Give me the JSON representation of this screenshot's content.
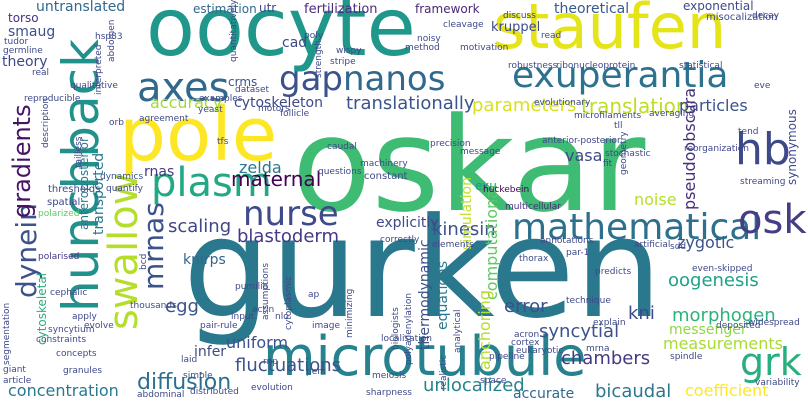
{
  "words": [
    {
      "text": "oskar",
      "color": "#3fbc73",
      "vertical": false
    },
    {
      "text": "gurken",
      "color": "#2a788e",
      "vertical": false
    },
    {
      "text": "oocyte",
      "color": "#1f988b",
      "vertical": false
    },
    {
      "text": "staufen",
      "color": "#e5e419",
      "vertical": false
    },
    {
      "text": "pole",
      "color": "#fde725",
      "vertical": false
    },
    {
      "text": "hunchback",
      "color": "#21918c",
      "vertical": true
    },
    {
      "text": "microtubule",
      "color": "#26828e",
      "vertical": false
    },
    {
      "text": "exuperantia",
      "color": "#2c728e",
      "vertical": false
    },
    {
      "text": "mathematical",
      "color": "#2d708e",
      "vertical": false
    },
    {
      "text": "nanos",
      "color": "#31688e",
      "vertical": false
    },
    {
      "text": "plasm",
      "color": "#22a884",
      "vertical": false
    },
    {
      "text": "swallow",
      "color": "#b5de2b",
      "vertical": true
    },
    {
      "text": "axes",
      "color": "#30688e",
      "vertical": false
    },
    {
      "text": "gap",
      "color": "#3b528b",
      "vertical": false
    },
    {
      "text": "nurse",
      "color": "#3e4a89",
      "vertical": false
    },
    {
      "text": "hb",
      "color": "#3e4989",
      "vertical": false
    },
    {
      "text": "osk",
      "color": "#433e85",
      "vertical": false
    },
    {
      "text": "grk",
      "color": "#29af7f",
      "vertical": false
    },
    {
      "text": "dynein",
      "color": "#3b528b",
      "vertical": true
    },
    {
      "text": "mrnas",
      "color": "#3b528b",
      "vertical": true
    },
    {
      "text": "diffusion",
      "color": "#2d708e",
      "vertical": false
    },
    {
      "text": "gradients",
      "color": "#471365",
      "vertical": true
    },
    {
      "text": "translationally",
      "color": "#39558c",
      "vertical": false
    },
    {
      "text": "untranslated",
      "color": "#31688e",
      "vertical": false
    },
    {
      "text": "theoretical",
      "color": "#375a8c",
      "vertical": false
    },
    {
      "text": "morphogen",
      "color": "#2db27d",
      "vertical": false
    },
    {
      "text": "oogenesis",
      "color": "#1fa188",
      "vertical": false
    },
    {
      "text": "translation",
      "color": "#bddf26",
      "vertical": false
    },
    {
      "text": "accuracy",
      "color": "#a2da37",
      "vertical": false
    },
    {
      "text": "cytoskeleton",
      "color": "#3e4989",
      "vertical": false
    },
    {
      "text": "blastoderm",
      "color": "#443983",
      "vertical": false
    },
    {
      "text": "maternal",
      "color": "#440154",
      "vertical": false
    },
    {
      "text": "kinesin",
      "color": "#3b528b",
      "vertical": false
    },
    {
      "text": "scaling",
      "color": "#404688",
      "vertical": false
    },
    {
      "text": "parameters",
      "color": "#d8e219",
      "vertical": false
    },
    {
      "text": "particles",
      "color": "#3b528b",
      "vertical": false
    },
    {
      "text": "pseudoobscura",
      "color": "#472d7b",
      "vertical": true
    },
    {
      "text": "uniform",
      "color": "#3b528b",
      "vertical": false
    },
    {
      "text": "fluctuations",
      "color": "#3b528b",
      "vertical": false
    },
    {
      "text": "unlocalized",
      "color": "#25848e",
      "vertical": false
    },
    {
      "text": "concentration",
      "color": "#2a788e",
      "vertical": false
    },
    {
      "text": "syncytial",
      "color": "#3b528b",
      "vertical": false
    },
    {
      "text": "chambers",
      "color": "#443983",
      "vertical": false
    },
    {
      "text": "measurements",
      "color": "#a8db34",
      "vertical": false
    },
    {
      "text": "bicaudal",
      "color": "#2a788e",
      "vertical": false
    },
    {
      "text": "coefficient",
      "color": "#fde725",
      "vertical": false
    },
    {
      "text": "accurate",
      "color": "#30688e",
      "vertical": false
    },
    {
      "text": "messenger",
      "color": "#90d743",
      "vertical": false
    },
    {
      "text": "kni",
      "color": "#3e4989",
      "vertical": false
    },
    {
      "text": "noise",
      "color": "#b5de2b",
      "vertical": false
    },
    {
      "text": "zygotic",
      "color": "#3b528b",
      "vertical": false
    },
    {
      "text": "error",
      "color": "#3b528b",
      "vertical": false
    },
    {
      "text": "egg",
      "color": "#3b528b",
      "vertical": false
    },
    {
      "text": "infer",
      "color": "#3e4989",
      "vertical": false
    },
    {
      "text": "simulation",
      "color": "#c2df23",
      "vertical": true
    },
    {
      "text": "computational",
      "color": "#5ec962",
      "vertical": true
    },
    {
      "text": "anchoring",
      "color": "#b5de2b",
      "vertical": true
    },
    {
      "text": "thermodynamic",
      "color": "#3b528b",
      "vertical": true
    },
    {
      "text": "equations",
      "color": "#2a788e",
      "vertical": true
    },
    {
      "text": "explicitly",
      "color": "#3e4989",
      "vertical": false
    },
    {
      "text": "vasa",
      "color": "#3e4989",
      "vertical": false
    },
    {
      "text": "zelda",
      "color": "#2a788e",
      "vertical": false
    },
    {
      "text": "rnas",
      "color": "#443983",
      "vertical": false
    },
    {
      "text": "knirps",
      "color": "#31688e",
      "vertical": false
    },
    {
      "text": "transported",
      "color": "#2a788e",
      "vertical": true
    },
    {
      "text": "anteroposterior",
      "color": "#2a788e",
      "vertical": true
    },
    {
      "text": "smaug",
      "color": "#3b528b",
      "vertical": false
    },
    {
      "text": "torso",
      "color": "#46337f",
      "vertical": false
    },
    {
      "text": "theory",
      "color": "#3e4989",
      "vertical": false
    },
    {
      "text": "cad",
      "color": "#3e4989",
      "vertical": false
    },
    {
      "text": "crms",
      "color": "#3b528b",
      "vertical": false
    },
    {
      "text": "estimation",
      "color": "#31688e",
      "vertical": false
    },
    {
      "text": "fertilization",
      "color": "#472d7b",
      "vertical": false
    },
    {
      "text": "framework",
      "color": "#482878",
      "vertical": false
    },
    {
      "text": "kruppel",
      "color": "#3e4989",
      "vertical": false
    },
    {
      "text": "exponential",
      "color": "#3e4989",
      "vertical": false
    },
    {
      "text": "misocalization",
      "color": "#3e4989",
      "vertical": false
    },
    {
      "text": "synonymous",
      "color": "#3e4989",
      "vertical": true
    },
    {
      "text": "exu",
      "color": "#1f988b",
      "vertical": false
    },
    {
      "text": "cytoskeletal",
      "color": "#27ad81",
      "vertical": true
    },
    {
      "text": "multicellular",
      "color": "#472d7b",
      "vertical": false
    },
    {
      "text": "huckebein",
      "color": "#440154",
      "vertical": false
    },
    {
      "text": "constant",
      "color": "#3e4989",
      "vertical": false
    },
    {
      "text": "thresholds",
      "color": "#3e4989",
      "vertical": false
    },
    {
      "text": "polarised",
      "color": "#443983",
      "vertical": false
    },
    {
      "text": "polarized",
      "color": "#5ec962",
      "vertical": false
    },
    {
      "text": "spatial",
      "color": "#3e4989",
      "vertical": false
    },
    {
      "text": "dynamics",
      "color": "#3b528b",
      "vertical": false
    },
    {
      "text": "quantify",
      "color": "#3e4989",
      "vertical": false
    },
    {
      "text": "cephalic",
      "color": "#3e4989",
      "vertical": false
    },
    {
      "text": "thousands",
      "color": "#3e4989",
      "vertical": false
    },
    {
      "text": "pumilio",
      "color": "#3e4989",
      "vertical": false
    },
    {
      "text": "thorax",
      "color": "#3e4989",
      "vertical": false
    },
    {
      "text": "annotations",
      "color": "#3e4989",
      "vertical": false
    },
    {
      "text": "artificial",
      "color": "#3e4989",
      "vertical": false
    },
    {
      "text": "even-skipped",
      "color": "#3e4989",
      "vertical": false
    },
    {
      "text": "predicts",
      "color": "#3e4989",
      "vertical": false
    },
    {
      "text": "technique",
      "color": "#3e4989",
      "vertical": false
    },
    {
      "text": "explain",
      "color": "#3e4989",
      "vertical": false
    },
    {
      "text": "acron",
      "color": "#3e4989",
      "vertical": false
    },
    {
      "text": "mrna",
      "color": "#3e4989",
      "vertical": false
    },
    {
      "text": "cortex",
      "color": "#3e4989",
      "vertical": false
    },
    {
      "text": "localisation",
      "color": "#3e4989",
      "vertical": false
    },
    {
      "text": "pipeline",
      "color": "#3e4989",
      "vertical": false
    },
    {
      "text": "eukaryotic",
      "color": "#3e4989",
      "vertical": false
    },
    {
      "text": "space",
      "color": "#3e4989",
      "vertical": false
    },
    {
      "text": "widespread",
      "color": "#3e4989",
      "vertical": false
    },
    {
      "text": "deposited",
      "color": "#3e4989",
      "vertical": false
    },
    {
      "text": "spindle",
      "color": "#3e4989",
      "vertical": false
    },
    {
      "text": "variability",
      "color": "#3e4989",
      "vertical": false
    },
    {
      "text": "meiosis",
      "color": "#3e4989",
      "vertical": false
    },
    {
      "text": "sharpness",
      "color": "#3e4989",
      "vertical": false
    },
    {
      "text": "evolution",
      "color": "#3e4989",
      "vertical": false
    },
    {
      "text": "distributed",
      "color": "#3e4989",
      "vertical": false
    },
    {
      "text": "abdominal",
      "color": "#3e4989",
      "vertical": false
    },
    {
      "text": "granules",
      "color": "#3e4989",
      "vertical": false
    },
    {
      "text": "giant",
      "color": "#3e4989",
      "vertical": false
    },
    {
      "text": "article",
      "color": "#3e4989",
      "vertical": false
    },
    {
      "text": "constraints",
      "color": "#3e4989",
      "vertical": false
    },
    {
      "text": "concepts",
      "color": "#3e4989",
      "vertical": false
    },
    {
      "text": "syncytium",
      "color": "#3e4989",
      "vertical": false
    },
    {
      "text": "apply",
      "color": "#3e4989",
      "vertical": false
    },
    {
      "text": "evolve",
      "color": "#3e4989",
      "vertical": false
    },
    {
      "text": "pair-rule",
      "color": "#3e4989",
      "vertical": false
    },
    {
      "text": "laid",
      "color": "#3e4989",
      "vertical": false
    },
    {
      "text": "input",
      "color": "#3e4989",
      "vertical": false
    },
    {
      "text": "simple",
      "color": "#3e4989",
      "vertical": false
    },
    {
      "text": "actin",
      "color": "#3e4989",
      "vertical": false
    },
    {
      "text": "image",
      "color": "#3e4989",
      "vertical": false
    },
    {
      "text": "biologists",
      "color": "#3e4989",
      "vertical": true
    },
    {
      "text": "polyadenylation",
      "color": "#3e4989",
      "vertical": true
    },
    {
      "text": "cytoplasmic",
      "color": "#3e4989",
      "vertical": true
    },
    {
      "text": "minimizing",
      "color": "#3e4989",
      "vertical": true
    },
    {
      "text": "analytical",
      "color": "#3e4989",
      "vertical": true
    },
    {
      "text": "realistic",
      "color": "#3e4989",
      "vertical": true
    },
    {
      "text": "assumptions",
      "color": "#3e4989",
      "vertical": true
    },
    {
      "text": "segmentation",
      "color": "#3e4989",
      "vertical": true
    },
    {
      "text": "tailless",
      "color": "#3e4989",
      "vertical": true
    },
    {
      "text": "description",
      "color": "#3e4989",
      "vertical": true
    },
    {
      "text": "reproducible",
      "color": "#3e4989",
      "vertical": false
    },
    {
      "text": "qualitative",
      "color": "#3e4989",
      "vertical": false
    },
    {
      "text": "germline",
      "color": "#3e4989",
      "vertical": false
    },
    {
      "text": "tudor",
      "color": "#3e4989",
      "vertical": false
    },
    {
      "text": "real",
      "color": "#3e4989",
      "vertical": false
    },
    {
      "text": "interpreted",
      "color": "#3e4989",
      "vertical": true
    },
    {
      "text": "abdomen",
      "color": "#3e4989",
      "vertical": true
    },
    {
      "text": "quantitatively",
      "color": "#3e4989",
      "vertical": true
    },
    {
      "text": "strength",
      "color": "#3e4989",
      "vertical": true
    },
    {
      "text": "utr",
      "color": "#3e4989",
      "vertical": false
    },
    {
      "text": "poly",
      "color": "#3e4989",
      "vertical": false
    },
    {
      "text": "noisy",
      "color": "#3e4989",
      "vertical": false
    },
    {
      "text": "method",
      "color": "#3e4989",
      "vertical": false
    },
    {
      "text": "wispy",
      "color": "#3e4989",
      "vertical": false
    },
    {
      "text": "stripe",
      "color": "#3e4989",
      "vertical": false
    },
    {
      "text": "motivation",
      "color": "#3e4989",
      "vertical": false
    },
    {
      "text": "cleavage",
      "color": "#3e4989",
      "vertical": false
    },
    {
      "text": "discuss",
      "color": "#3e4989",
      "vertical": false
    },
    {
      "text": "read",
      "color": "#3e4989",
      "vertical": false
    },
    {
      "text": "robustness",
      "color": "#3e4989",
      "vertical": false
    },
    {
      "text": "ribonucleoprotein",
      "color": "#3e4989",
      "vertical": false
    },
    {
      "text": "statistical",
      "color": "#3e4989",
      "vertical": false
    },
    {
      "text": "evolutionary",
      "color": "#3e4989",
      "vertical": false
    },
    {
      "text": "eve",
      "color": "#3e4989",
      "vertical": false
    },
    {
      "text": "microfilaments",
      "color": "#3e4989",
      "vertical": false
    },
    {
      "text": "averaging",
      "color": "#3e4989",
      "vertical": false
    },
    {
      "text": "tll",
      "color": "#3e4989",
      "vertical": false
    },
    {
      "text": "tend",
      "color": "#3e4989",
      "vertical": false
    },
    {
      "text": "streaming",
      "color": "#3e4989",
      "vertical": false
    },
    {
      "text": "reorganization",
      "color": "#3e4989",
      "vertical": false
    },
    {
      "text": "anterior-posterior",
      "color": "#3e4989",
      "vertical": false
    },
    {
      "text": "precision",
      "color": "#3e4989",
      "vertical": false
    },
    {
      "text": "stochastic",
      "color": "#3e4989",
      "vertical": false
    },
    {
      "text": "message",
      "color": "#3e4989",
      "vertical": false
    },
    {
      "text": "caudal",
      "color": "#3e4989",
      "vertical": false
    },
    {
      "text": "machinery",
      "color": "#3e4989",
      "vertical": false
    },
    {
      "text": "questions",
      "color": "#3e4989",
      "vertical": false
    },
    {
      "text": "follicle",
      "color": "#3e4989",
      "vertical": false
    },
    {
      "text": "orb",
      "color": "#3e4989",
      "vertical": false
    },
    {
      "text": "tfs",
      "color": "#3e4989",
      "vertical": false
    },
    {
      "text": "examples",
      "color": "#3e4989",
      "vertical": false
    },
    {
      "text": "dataset",
      "color": "#3e4989",
      "vertical": false
    },
    {
      "text": "agreement",
      "color": "#3e4989",
      "vertical": false
    },
    {
      "text": "yeast",
      "color": "#3e4989",
      "vertical": false
    },
    {
      "text": "motors",
      "color": "#3e4989",
      "vertical": false
    },
    {
      "text": "bcd",
      "color": "#3e4989",
      "vertical": true
    },
    {
      "text": "fit",
      "color": "#3e4989",
      "vertical": false
    },
    {
      "text": "geometry",
      "color": "#3e4989",
      "vertical": true
    },
    {
      "text": "sdd",
      "color": "#3e4989",
      "vertical": false
    },
    {
      "text": "correctly",
      "color": "#3e4989",
      "vertical": false
    },
    {
      "text": "elements",
      "color": "#3e4989",
      "vertical": false
    },
    {
      "text": "par-1",
      "color": "#3e4989",
      "vertical": false
    },
    {
      "text": "nlo",
      "color": "#3e4989",
      "vertical": false
    },
    {
      "text": "rnp",
      "color": "#3e4989",
      "vertical": false
    },
    {
      "text": "pem",
      "color": "#3e4989",
      "vertical": false
    },
    {
      "text": "ap",
      "color": "#3e4989",
      "vertical": false
    },
    {
      "text": "hsp83",
      "color": "#3e4989",
      "vertical": false
    },
    {
      "text": "decay",
      "color": "#3e4989",
      "vertical": false
    }
  ]
}
